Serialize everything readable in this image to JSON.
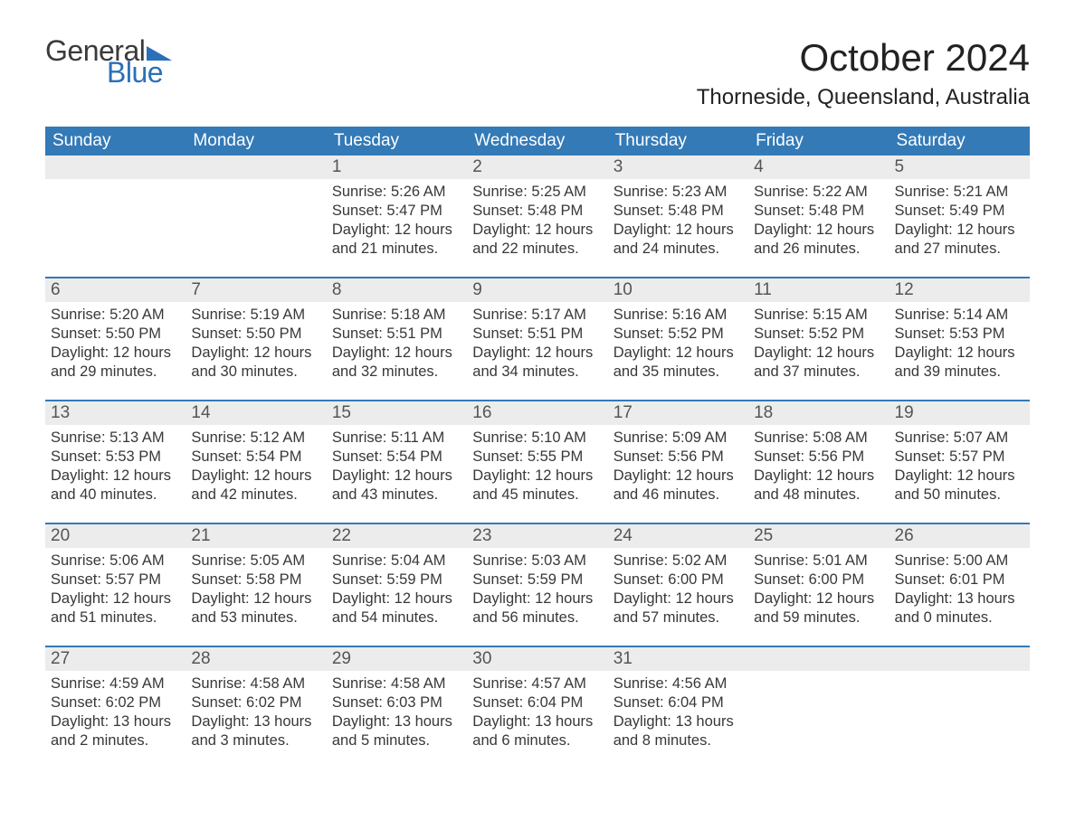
{
  "logo": {
    "word1": "General",
    "word2": "Blue"
  },
  "title": "October 2024",
  "location": "Thorneside, Queensland, Australia",
  "colors": {
    "header_bg": "#337ab7",
    "header_text": "#ffffff",
    "daynum_bg": "#ececec",
    "rule": "#337ab7",
    "text": "#383838",
    "logo_blue": "#2a70b8"
  },
  "fonts": {
    "title_size_pt": 32,
    "location_size_pt": 18,
    "dow_size_pt": 14,
    "body_size_pt": 12
  },
  "days_of_week": [
    "Sunday",
    "Monday",
    "Tuesday",
    "Wednesday",
    "Thursday",
    "Friday",
    "Saturday"
  ],
  "labels": {
    "sunrise": "Sunrise:",
    "sunset": "Sunset:",
    "daylight": "Daylight:"
  },
  "weeks": [
    [
      {
        "n": "",
        "sr": "",
        "ss": "",
        "dl": ""
      },
      {
        "n": "",
        "sr": "",
        "ss": "",
        "dl": ""
      },
      {
        "n": "1",
        "sr": "5:26 AM",
        "ss": "5:47 PM",
        "dl": "12 hours and 21 minutes."
      },
      {
        "n": "2",
        "sr": "5:25 AM",
        "ss": "5:48 PM",
        "dl": "12 hours and 22 minutes."
      },
      {
        "n": "3",
        "sr": "5:23 AM",
        "ss": "5:48 PM",
        "dl": "12 hours and 24 minutes."
      },
      {
        "n": "4",
        "sr": "5:22 AM",
        "ss": "5:48 PM",
        "dl": "12 hours and 26 minutes."
      },
      {
        "n": "5",
        "sr": "5:21 AM",
        "ss": "5:49 PM",
        "dl": "12 hours and 27 minutes."
      }
    ],
    [
      {
        "n": "6",
        "sr": "5:20 AM",
        "ss": "5:50 PM",
        "dl": "12 hours and 29 minutes."
      },
      {
        "n": "7",
        "sr": "5:19 AM",
        "ss": "5:50 PM",
        "dl": "12 hours and 30 minutes."
      },
      {
        "n": "8",
        "sr": "5:18 AM",
        "ss": "5:51 PM",
        "dl": "12 hours and 32 minutes."
      },
      {
        "n": "9",
        "sr": "5:17 AM",
        "ss": "5:51 PM",
        "dl": "12 hours and 34 minutes."
      },
      {
        "n": "10",
        "sr": "5:16 AM",
        "ss": "5:52 PM",
        "dl": "12 hours and 35 minutes."
      },
      {
        "n": "11",
        "sr": "5:15 AM",
        "ss": "5:52 PM",
        "dl": "12 hours and 37 minutes."
      },
      {
        "n": "12",
        "sr": "5:14 AM",
        "ss": "5:53 PM",
        "dl": "12 hours and 39 minutes."
      }
    ],
    [
      {
        "n": "13",
        "sr": "5:13 AM",
        "ss": "5:53 PM",
        "dl": "12 hours and 40 minutes."
      },
      {
        "n": "14",
        "sr": "5:12 AM",
        "ss": "5:54 PM",
        "dl": "12 hours and 42 minutes."
      },
      {
        "n": "15",
        "sr": "5:11 AM",
        "ss": "5:54 PM",
        "dl": "12 hours and 43 minutes."
      },
      {
        "n": "16",
        "sr": "5:10 AM",
        "ss": "5:55 PM",
        "dl": "12 hours and 45 minutes."
      },
      {
        "n": "17",
        "sr": "5:09 AM",
        "ss": "5:56 PM",
        "dl": "12 hours and 46 minutes."
      },
      {
        "n": "18",
        "sr": "5:08 AM",
        "ss": "5:56 PM",
        "dl": "12 hours and 48 minutes."
      },
      {
        "n": "19",
        "sr": "5:07 AM",
        "ss": "5:57 PM",
        "dl": "12 hours and 50 minutes."
      }
    ],
    [
      {
        "n": "20",
        "sr": "5:06 AM",
        "ss": "5:57 PM",
        "dl": "12 hours and 51 minutes."
      },
      {
        "n": "21",
        "sr": "5:05 AM",
        "ss": "5:58 PM",
        "dl": "12 hours and 53 minutes."
      },
      {
        "n": "22",
        "sr": "5:04 AM",
        "ss": "5:59 PM",
        "dl": "12 hours and 54 minutes."
      },
      {
        "n": "23",
        "sr": "5:03 AM",
        "ss": "5:59 PM",
        "dl": "12 hours and 56 minutes."
      },
      {
        "n": "24",
        "sr": "5:02 AM",
        "ss": "6:00 PM",
        "dl": "12 hours and 57 minutes."
      },
      {
        "n": "25",
        "sr": "5:01 AM",
        "ss": "6:00 PM",
        "dl": "12 hours and 59 minutes."
      },
      {
        "n": "26",
        "sr": "5:00 AM",
        "ss": "6:01 PM",
        "dl": "13 hours and 0 minutes."
      }
    ],
    [
      {
        "n": "27",
        "sr": "4:59 AM",
        "ss": "6:02 PM",
        "dl": "13 hours and 2 minutes."
      },
      {
        "n": "28",
        "sr": "4:58 AM",
        "ss": "6:02 PM",
        "dl": "13 hours and 3 minutes."
      },
      {
        "n": "29",
        "sr": "4:58 AM",
        "ss": "6:03 PM",
        "dl": "13 hours and 5 minutes."
      },
      {
        "n": "30",
        "sr": "4:57 AM",
        "ss": "6:04 PM",
        "dl": "13 hours and 6 minutes."
      },
      {
        "n": "31",
        "sr": "4:56 AM",
        "ss": "6:04 PM",
        "dl": "13 hours and 8 minutes."
      },
      {
        "n": "",
        "sr": "",
        "ss": "",
        "dl": ""
      },
      {
        "n": "",
        "sr": "",
        "ss": "",
        "dl": ""
      }
    ]
  ]
}
